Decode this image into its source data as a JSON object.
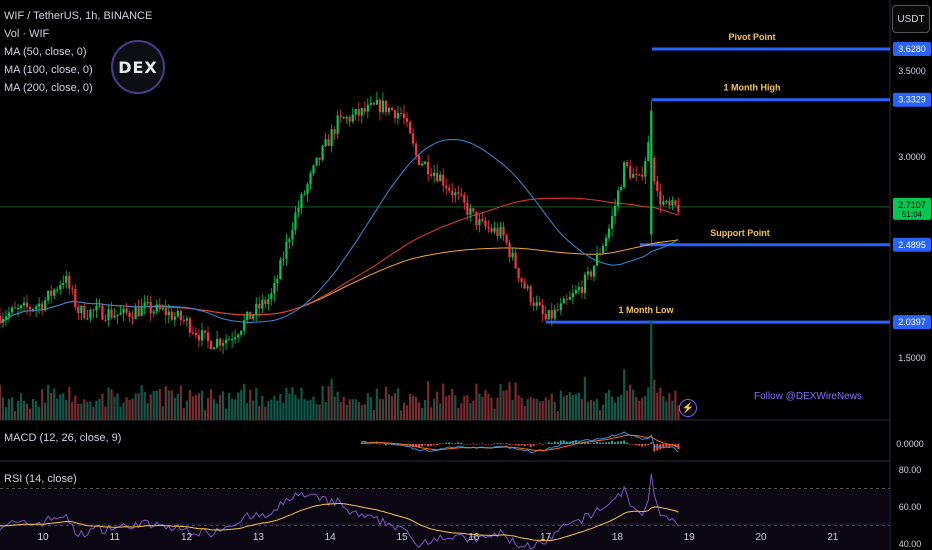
{
  "header": {
    "title": "WIF / TetherUS, 1h, BINANCE",
    "volume_label": "Vol · WIF",
    "ma50": "MA (50, close, 0)",
    "ma100": "MA (100, close, 0)",
    "ma200": "MA (200, close, 0)",
    "currency_button": "USDT"
  },
  "logo": {
    "text": "DEX"
  },
  "watermark": "Follow @DEXWireNews",
  "colors": {
    "up": "#00c853",
    "down": "#f23645",
    "ma50": "#2f8fda",
    "ma100": "#e53935",
    "ma200": "#f5a623",
    "level": "#2962ff",
    "label": "#f5c542",
    "rsi": "#7e57c2",
    "macd": "#2f8fda",
    "signal": "#ff6d00"
  },
  "chart_data": {
    "type": "candlestick",
    "symbol": "WIF / TetherUS",
    "interval": "1h",
    "exchange": "BINANCE",
    "x_tick_labels": [
      "10",
      "11",
      "12",
      "13",
      "14",
      "15",
      "16",
      "17",
      "18",
      "19",
      "20",
      "21"
    ],
    "price_ticks": [
      3.5,
      3.0,
      1.5
    ],
    "price_axis_labels": [
      "3.5000",
      "3.0000",
      "1.5000"
    ],
    "levels": [
      {
        "name": "Pivot Point",
        "price": "3.6280",
        "value": 3.628,
        "label_color": "#f5c542"
      },
      {
        "name": "1 Month High",
        "price": "3.3329",
        "value": 3.3329,
        "label_color": "#f5c542"
      },
      {
        "name": "Support Point",
        "price": "2.4895",
        "value": 2.4895,
        "label_color": "#f5c542"
      },
      {
        "name": "1 Month Low",
        "price": "2.0397",
        "value": 2.0397,
        "label_color": "#f5c542"
      }
    ],
    "current_price": {
      "price": "2.7107",
      "countdown": "51:04",
      "value": 2.71
    },
    "price_series_points": [
      {
        "day": 9.4,
        "price": 2.08
      },
      {
        "day": 9.7,
        "price": 2.11
      },
      {
        "day": 10.0,
        "price": 2.15
      },
      {
        "day": 10.3,
        "price": 2.3
      },
      {
        "day": 10.5,
        "price": 2.1
      },
      {
        "day": 10.8,
        "price": 2.1
      },
      {
        "day": 11.1,
        "price": 2.08
      },
      {
        "day": 11.4,
        "price": 2.12
      },
      {
        "day": 11.7,
        "price": 2.1
      },
      {
        "day": 12.0,
        "price": 2.04
      },
      {
        "day": 12.3,
        "price": 1.92
      },
      {
        "day": 12.6,
        "price": 1.95
      },
      {
        "day": 12.9,
        "price": 2.08
      },
      {
        "day": 13.2,
        "price": 2.2
      },
      {
        "day": 13.5,
        "price": 2.65
      },
      {
        "day": 13.8,
        "price": 2.95
      },
      {
        "day": 14.1,
        "price": 3.2
      },
      {
        "day": 14.4,
        "price": 3.25
      },
      {
        "day": 14.7,
        "price": 3.3
      },
      {
        "day": 15.0,
        "price": 3.25
      },
      {
        "day": 15.2,
        "price": 3.0
      },
      {
        "day": 15.5,
        "price": 2.9
      },
      {
        "day": 15.8,
        "price": 2.75
      },
      {
        "day": 16.1,
        "price": 2.6
      },
      {
        "day": 16.4,
        "price": 2.55
      },
      {
        "day": 16.7,
        "price": 2.25
      },
      {
        "day": 17.0,
        "price": 2.05
      },
      {
        "day": 17.3,
        "price": 2.15
      },
      {
        "day": 17.6,
        "price": 2.3
      },
      {
        "day": 17.9,
        "price": 2.6
      },
      {
        "day": 18.1,
        "price": 2.95
      },
      {
        "day": 18.3,
        "price": 2.85
      },
      {
        "day": 18.45,
        "price": 3.1
      },
      {
        "day": 18.55,
        "price": 2.78
      },
      {
        "day": 18.7,
        "price": 2.7
      },
      {
        "day": 18.85,
        "price": 2.71
      }
    ],
    "macd": {
      "label": "MACD (12, 26, close, 9)",
      "axis_label": "0.0000"
    },
    "rsi": {
      "label": "RSI (14, close)",
      "axis_labels": [
        "80.00",
        "60.00",
        "40.00"
      ]
    }
  }
}
